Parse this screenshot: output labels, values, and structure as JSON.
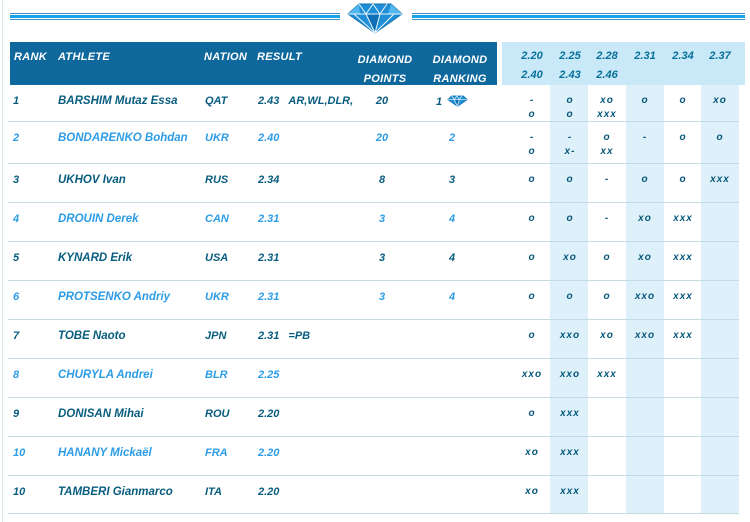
{
  "icons": {
    "logo": "diamond-league-gem-icon",
    "rank_leader": "diamond-rank-icon"
  },
  "colors": {
    "header_bg": "#0e689c",
    "header_text": "#ffffff",
    "highlight_bg": "#c9e8f8",
    "stripe_bg": "#def1fb",
    "dark_text": "#085d7f",
    "blue_text": "#2d9ce6",
    "attempt_text": "#07587a",
    "heights_text": "#077098",
    "rule_blue": "#17a4ed",
    "gem_blue": "#1e8ed6"
  },
  "table": {
    "headers": {
      "rank": "RANK",
      "athlete": "ATHLETE",
      "nation": "NATION",
      "result": "RESULT",
      "diamond_points_line1": "DIAMOND",
      "diamond_points_line2": "POINTS",
      "diamond_ranking_line1": "DIAMOND",
      "diamond_ranking_line2": "RANKING"
    },
    "heights_line1": [
      "2.20",
      "2.25",
      "2.28",
      "2.31",
      "2.34",
      "2.37"
    ],
    "heights_line2": [
      "2.40",
      "2.43",
      "2.46"
    ],
    "rows": [
      {
        "rank": "1",
        "athlete": "BARSHIM Mutaz Essa",
        "nation": "QAT",
        "result": "2.43",
        "note": "AR,WL,DLR,",
        "points": "20",
        "ranking": "1",
        "has_diamond": true,
        "attempts_line1": [
          "-",
          "o",
          "xo",
          "o",
          "o",
          "xo"
        ],
        "attempts_line2": [
          "o",
          "o",
          "xxx",
          "",
          "",
          ""
        ],
        "style": "dark"
      },
      {
        "rank": "2",
        "athlete": "BONDARENKO Bohdan",
        "nation": "UKR",
        "result": "2.40",
        "note": "",
        "points": "20",
        "ranking": "2",
        "has_diamond": false,
        "attempts_line1": [
          "-",
          "-",
          "o",
          "-",
          "o",
          "o"
        ],
        "attempts_line2": [
          "o",
          "x-",
          "xx",
          "",
          "",
          ""
        ],
        "style": "blue"
      },
      {
        "rank": "3",
        "athlete": "UKHOV Ivan",
        "nation": "RUS",
        "result": "2.34",
        "note": "",
        "points": "8",
        "ranking": "3",
        "has_diamond": false,
        "attempts_line1": [
          "o",
          "o",
          "-",
          "o",
          "o",
          "xxx"
        ],
        "attempts_line2": [
          "",
          "",
          "",
          "",
          "",
          ""
        ],
        "style": "dark"
      },
      {
        "rank": "4",
        "athlete": "DROUIN Derek",
        "nation": "CAN",
        "result": "2.31",
        "note": "",
        "points": "3",
        "ranking": "4",
        "has_diamond": false,
        "attempts_line1": [
          "o",
          "o",
          "-",
          "xo",
          "xxx",
          ""
        ],
        "attempts_line2": [
          "",
          "",
          "",
          "",
          "",
          ""
        ],
        "style": "blue"
      },
      {
        "rank": "5",
        "athlete": "KYNARD Erik",
        "nation": "USA",
        "result": "2.31",
        "note": "",
        "points": "3",
        "ranking": "4",
        "has_diamond": false,
        "attempts_line1": [
          "o",
          "xo",
          "o",
          "xo",
          "xxx",
          ""
        ],
        "attempts_line2": [
          "",
          "",
          "",
          "",
          "",
          ""
        ],
        "style": "dark"
      },
      {
        "rank": "6",
        "athlete": "PROTSENKO Andriy",
        "nation": "UKR",
        "result": "2.31",
        "note": "",
        "points": "3",
        "ranking": "4",
        "has_diamond": false,
        "attempts_line1": [
          "o",
          "o",
          "o",
          "xxo",
          "xxx",
          ""
        ],
        "attempts_line2": [
          "",
          "",
          "",
          "",
          "",
          ""
        ],
        "style": "blue"
      },
      {
        "rank": "7",
        "athlete": "TOBE Naoto",
        "nation": "JPN",
        "result": "2.31",
        "note": "=PB",
        "points": "",
        "ranking": "",
        "has_diamond": false,
        "attempts_line1": [
          "o",
          "xxo",
          "xo",
          "xxo",
          "xxx",
          ""
        ],
        "attempts_line2": [
          "",
          "",
          "",
          "",
          "",
          ""
        ],
        "style": "dark"
      },
      {
        "rank": "8",
        "athlete": "CHURYLA Andrei",
        "nation": "BLR",
        "result": "2.25",
        "note": "",
        "points": "",
        "ranking": "",
        "has_diamond": false,
        "attempts_line1": [
          "xxo",
          "xxo",
          "xxx",
          "",
          "",
          ""
        ],
        "attempts_line2": [
          "",
          "",
          "",
          "",
          "",
          ""
        ],
        "style": "blue"
      },
      {
        "rank": "9",
        "athlete": "DONISAN Mihai",
        "nation": "ROU",
        "result": "2.20",
        "note": "",
        "points": "",
        "ranking": "",
        "has_diamond": false,
        "attempts_line1": [
          "o",
          "xxx",
          "",
          "",
          "",
          ""
        ],
        "attempts_line2": [
          "",
          "",
          "",
          "",
          "",
          ""
        ],
        "style": "dark"
      },
      {
        "rank": "10",
        "athlete": "HANANY Mickaël",
        "nation": "FRA",
        "result": "2.20",
        "note": "",
        "points": "",
        "ranking": "",
        "has_diamond": false,
        "attempts_line1": [
          "xo",
          "xxx",
          "",
          "",
          "",
          ""
        ],
        "attempts_line2": [
          "",
          "",
          "",
          "",
          "",
          ""
        ],
        "style": "blue"
      },
      {
        "rank": "10",
        "athlete": "TAMBERI Gianmarco",
        "nation": "ITA",
        "result": "2.20",
        "note": "",
        "points": "",
        "ranking": "",
        "has_diamond": false,
        "attempts_line1": [
          "xo",
          "xxx",
          "",
          "",
          "",
          ""
        ],
        "attempts_line2": [
          "",
          "",
          "",
          "",
          "",
          ""
        ],
        "style": "dark"
      }
    ]
  }
}
